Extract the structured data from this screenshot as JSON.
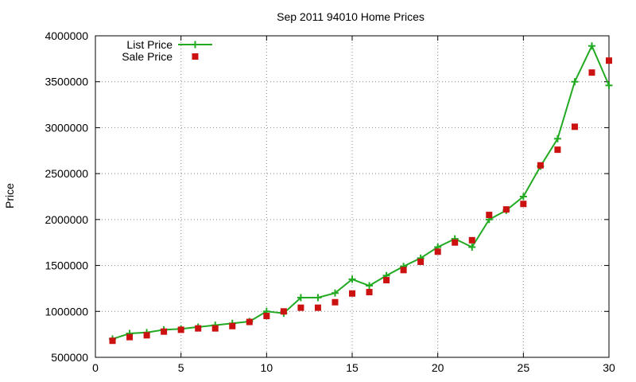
{
  "chart_data": {
    "type": "line",
    "title": "Sep 2011 94010 Home Prices",
    "xlabel": "",
    "ylabel": "Price",
    "xlim": [
      0,
      30
    ],
    "ylim": [
      500000,
      4000000
    ],
    "xticks": [
      0,
      5,
      10,
      15,
      20,
      25,
      30
    ],
    "yticks": [
      500000,
      1000000,
      1500000,
      2000000,
      2500000,
      3000000,
      3500000,
      4000000
    ],
    "grid": true,
    "legend_position": "top-left",
    "series": [
      {
        "name": "List Price",
        "style": "line-with-plus-markers",
        "color": "#22aa22",
        "x": [
          1,
          2,
          3,
          4,
          5,
          6,
          7,
          8,
          9,
          10,
          11,
          12,
          13,
          14,
          15,
          16,
          17,
          18,
          19,
          20,
          21,
          22,
          23,
          24,
          25,
          26,
          27,
          28,
          29,
          30
        ],
        "y": [
          700000,
          760000,
          770000,
          800000,
          810000,
          830000,
          850000,
          870000,
          890000,
          1000000,
          980000,
          1150000,
          1150000,
          1200000,
          1350000,
          1280000,
          1390000,
          1490000,
          1580000,
          1700000,
          1790000,
          1700000,
          2000000,
          2100000,
          2250000,
          2580000,
          2880000,
          3500000,
          3890000,
          3460000
        ]
      },
      {
        "name": "Sale Price",
        "style": "square-markers",
        "color": "#cc1111",
        "x": [
          1,
          2,
          3,
          4,
          5,
          6,
          7,
          8,
          9,
          10,
          11,
          12,
          13,
          14,
          15,
          16,
          17,
          18,
          19,
          20,
          21,
          22,
          23,
          24,
          25,
          26,
          27,
          28,
          29,
          30
        ],
        "y": [
          680000,
          720000,
          740000,
          780000,
          800000,
          815000,
          815000,
          840000,
          885000,
          950000,
          1000000,
          1040000,
          1040000,
          1100000,
          1195000,
          1210000,
          1340000,
          1450000,
          1540000,
          1650000,
          1750000,
          1775000,
          2050000,
          2110000,
          2170000,
          2590000,
          2760000,
          3010000,
          3600000,
          3730000
        ]
      }
    ]
  }
}
